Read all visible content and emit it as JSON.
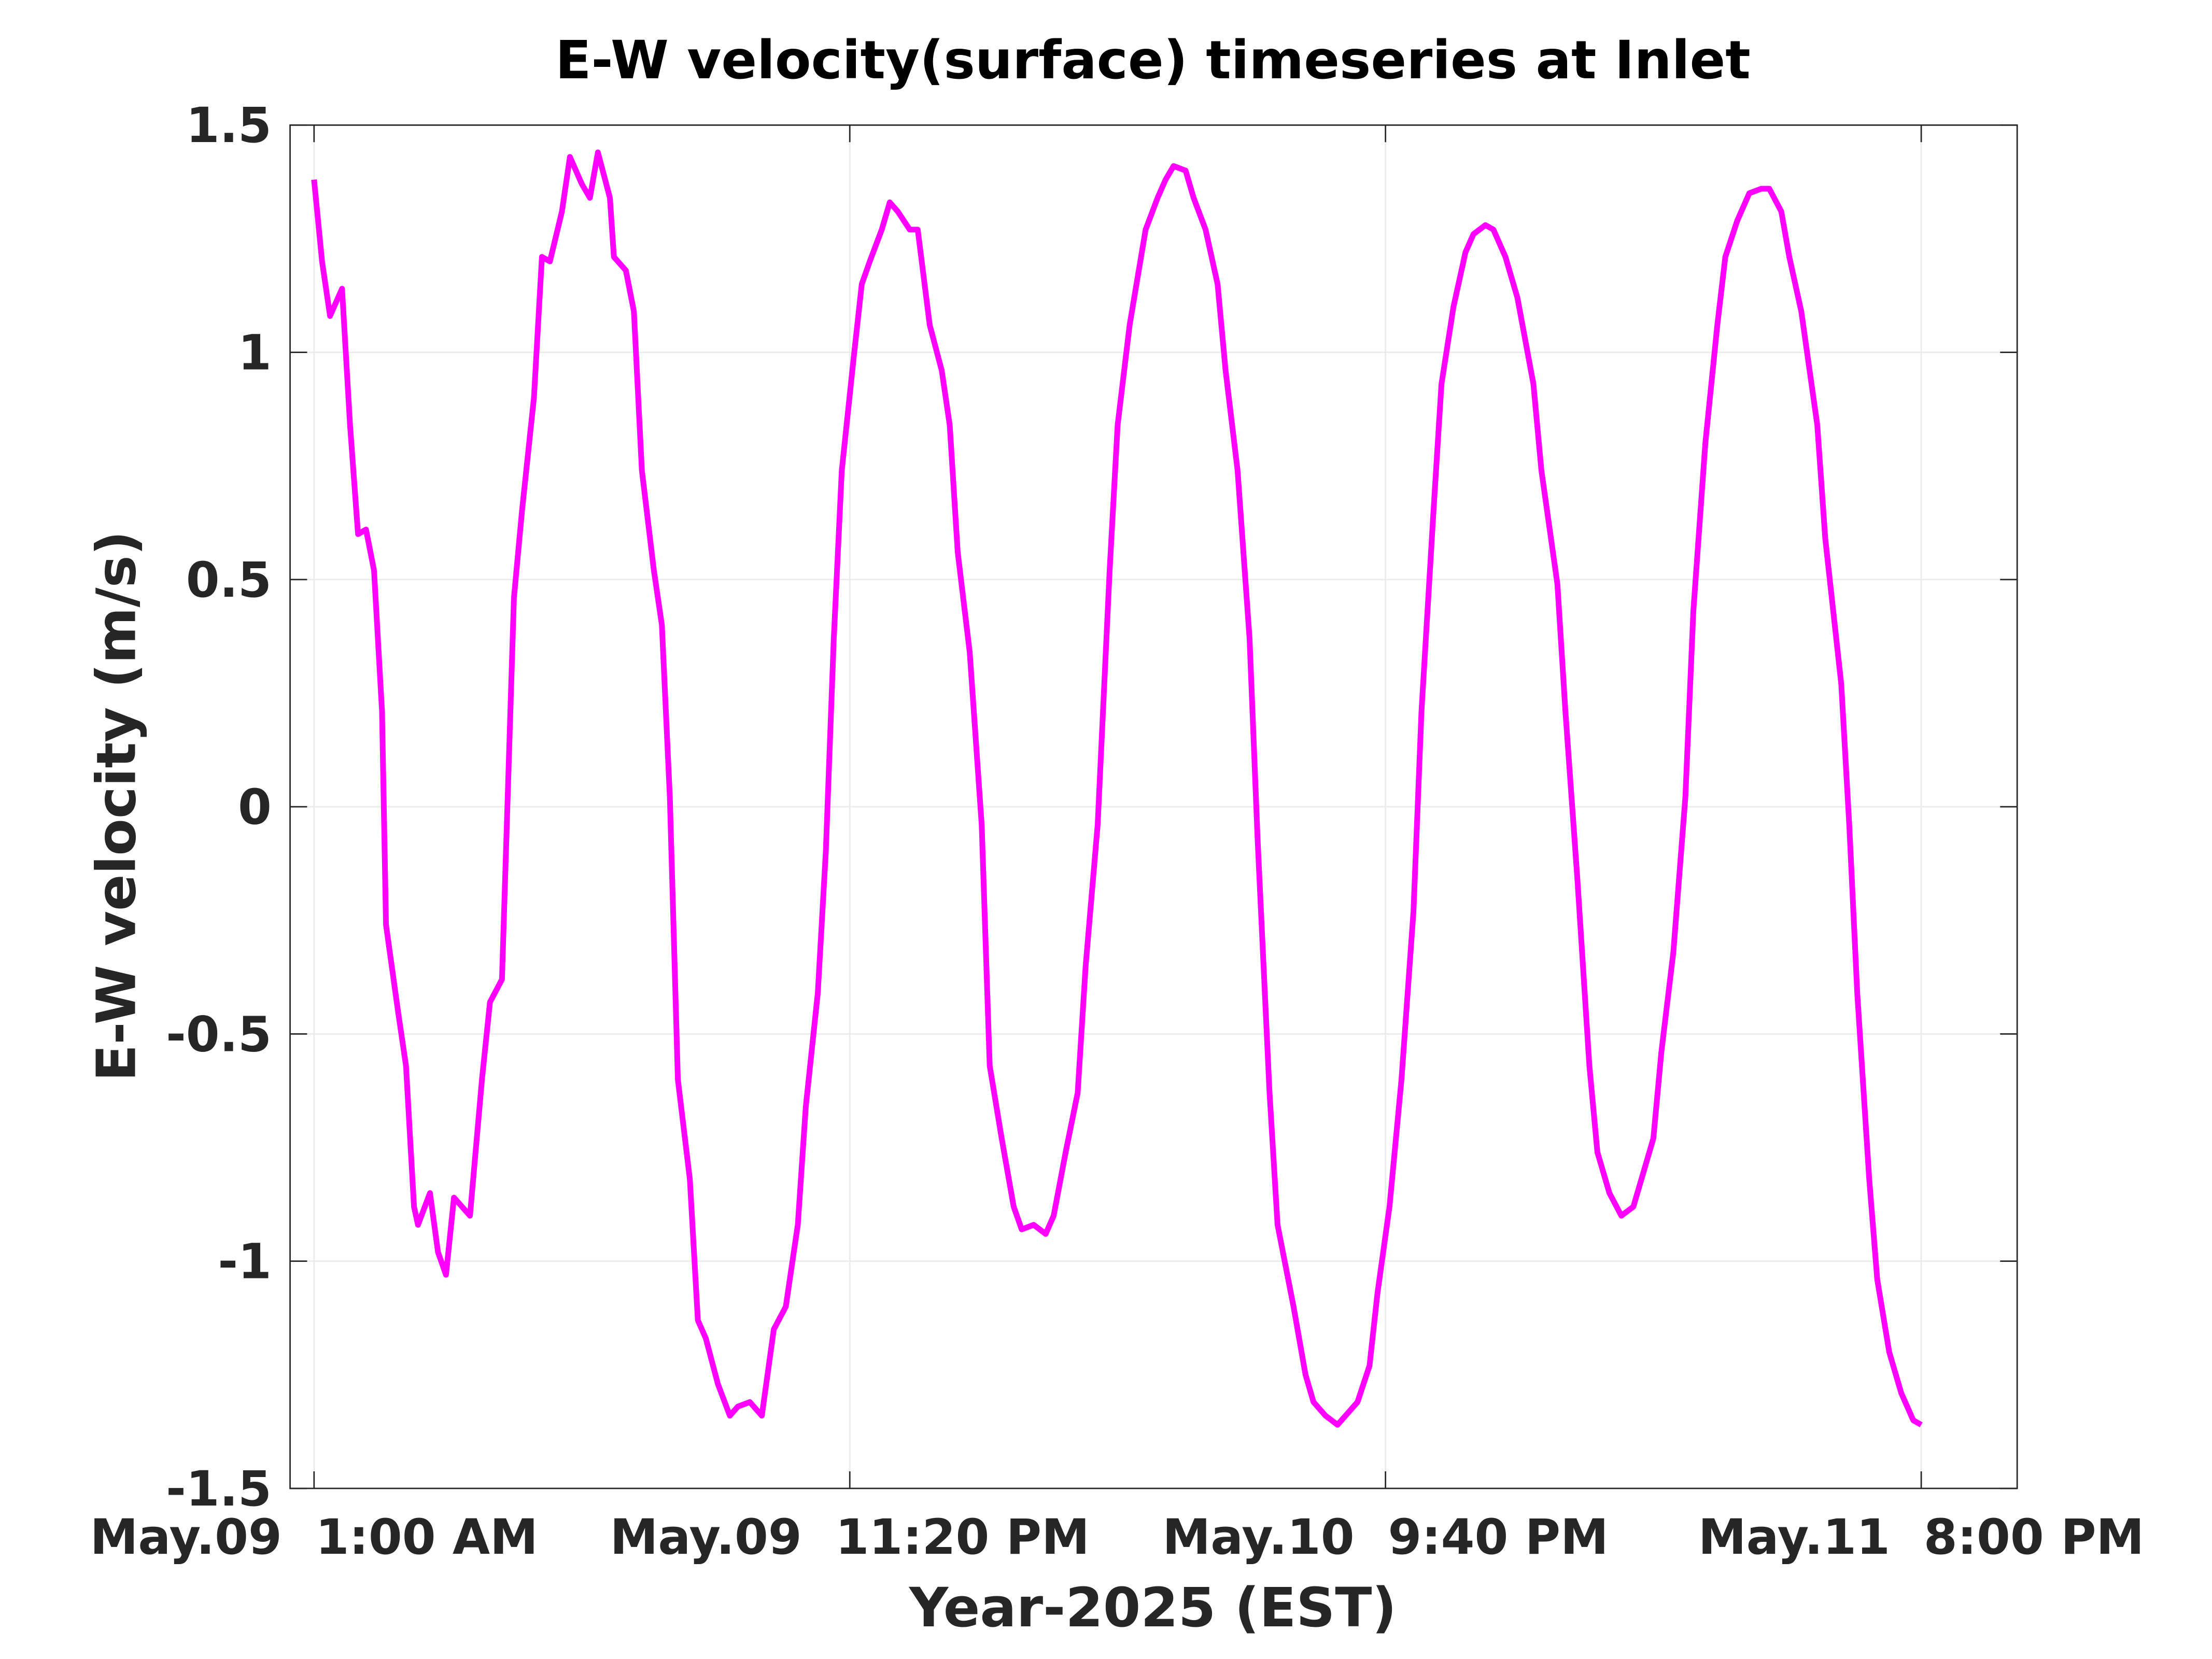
{
  "chart_data": {
    "type": "line",
    "title": "E-W velocity(surface) timeseries at Inlet",
    "xlabel": "Year-2025 (EST)",
    "ylabel": "E-W velocity (m/s)",
    "xlim": [
      "2025-05-09 00:00",
      "2025-05-12 00:00"
    ],
    "xticks": [
      {
        "value": "2025-05-09 01:00",
        "label": "May.09  1:00 AM"
      },
      {
        "value": "2025-05-09 23:20",
        "label": "May.09  11:20 PM"
      },
      {
        "value": "2025-05-10 21:40",
        "label": "May.10  9:40 PM"
      },
      {
        "value": "2025-05-11 20:00",
        "label": "May.11  8:00 PM"
      }
    ],
    "ylim": [
      -1.5,
      1.5
    ],
    "yticks": [
      -1.5,
      -1,
      -0.5,
      0,
      0.5,
      1,
      1.5
    ],
    "grid": true,
    "series": [
      {
        "color": "#ff00ff",
        "x": [
          "2025-05-09 01:00",
          "2025-05-09 01:20",
          "2025-05-09 01:40",
          "2025-05-09 02:10",
          "2025-05-09 02:30",
          "2025-05-09 02:50",
          "2025-05-09 03:10",
          "2025-05-09 03:30",
          "2025-05-09 03:50",
          "2025-05-09 04:00",
          "2025-05-09 04:30",
          "2025-05-09 04:50",
          "2025-05-09 05:10",
          "2025-05-09 05:20",
          "2025-05-09 05:50",
          "2025-05-09 06:10",
          "2025-05-09 06:30",
          "2025-05-09 06:50",
          "2025-05-09 07:30",
          "2025-05-09 08:00",
          "2025-05-09 08:20",
          "2025-05-09 08:50",
          "2025-05-09 09:00",
          "2025-05-09 09:20",
          "2025-05-09 09:40",
          "2025-05-09 10:10",
          "2025-05-09 10:30",
          "2025-05-09 10:50",
          "2025-05-09 11:20",
          "2025-05-09 11:40",
          "2025-05-09 12:10",
          "2025-05-09 12:30",
          "2025-05-09 12:50",
          "2025-05-09 13:20",
          "2025-05-09 13:30",
          "2025-05-09 14:00",
          "2025-05-09 14:20",
          "2025-05-09 14:40",
          "2025-05-09 15:10",
          "2025-05-09 15:30",
          "2025-05-09 15:50",
          "2025-05-09 16:10",
          "2025-05-09 16:40",
          "2025-05-09 17:00",
          "2025-05-09 17:20",
          "2025-05-09 17:50",
          "2025-05-09 18:20",
          "2025-05-09 18:40",
          "2025-05-09 19:10",
          "2025-05-09 19:40",
          "2025-05-09 20:10",
          "2025-05-09 20:40",
          "2025-05-09 21:10",
          "2025-05-09 21:30",
          "2025-05-09 22:00",
          "2025-05-09 22:20",
          "2025-05-09 22:40",
          "2025-05-09 23:00",
          "2025-05-09 23:30",
          "2025-05-09 23:50",
          "2025-05-10 00:10",
          "2025-05-10 00:40",
          "2025-05-10 01:00",
          "2025-05-10 01:20",
          "2025-05-10 01:50",
          "2025-05-10 02:10",
          "2025-05-10 02:40",
          "2025-05-10 03:10",
          "2025-05-10 03:30",
          "2025-05-10 03:50",
          "2025-05-10 04:20",
          "2025-05-10 04:50",
          "2025-05-10 05:10",
          "2025-05-10 05:40",
          "2025-05-10 06:10",
          "2025-05-10 06:30",
          "2025-05-10 07:00",
          "2025-05-10 07:30",
          "2025-05-10 07:50",
          "2025-05-10 08:20",
          "2025-05-10 08:50",
          "2025-05-10 09:10",
          "2025-05-10 09:40",
          "2025-05-10 10:10",
          "2025-05-10 10:30",
          "2025-05-10 11:00",
          "2025-05-10 11:40",
          "2025-05-10 12:10",
          "2025-05-10 12:30",
          "2025-05-10 12:50",
          "2025-05-10 13:20",
          "2025-05-10 13:40",
          "2025-05-10 14:10",
          "2025-05-10 14:40",
          "2025-05-10 15:00",
          "2025-05-10 15:30",
          "2025-05-10 16:00",
          "2025-05-10 16:20",
          "2025-05-10 16:50",
          "2025-05-10 17:10",
          "2025-05-10 17:50",
          "2025-05-10 18:20",
          "2025-05-10 18:40",
          "2025-05-10 19:10",
          "2025-05-10 19:40",
          "2025-05-10 20:00",
          "2025-05-10 20:30",
          "2025-05-10 21:00",
          "2025-05-10 21:20",
          "2025-05-10 21:50",
          "2025-05-10 22:20",
          "2025-05-10 22:50",
          "2025-05-10 23:10",
          "2025-05-10 23:40",
          "2025-05-11 00:00",
          "2025-05-11 00:30",
          "2025-05-11 01:00",
          "2025-05-11 01:20",
          "2025-05-11 01:50",
          "2025-05-11 02:10",
          "2025-05-11 02:40",
          "2025-05-11 03:10",
          "2025-05-11 03:50",
          "2025-05-11 04:10",
          "2025-05-11 04:50",
          "2025-05-11 05:10",
          "2025-05-11 05:40",
          "2025-05-11 06:10",
          "2025-05-11 06:30",
          "2025-05-11 07:00",
          "2025-05-11 07:30",
          "2025-05-11 08:00",
          "2025-05-11 08:20",
          "2025-05-11 08:50",
          "2025-05-11 09:10",
          "2025-05-11 09:40",
          "2025-05-11 10:10",
          "2025-05-11 10:30",
          "2025-05-11 11:00",
          "2025-05-11 11:30",
          "2025-05-11 11:50",
          "2025-05-11 12:20",
          "2025-05-11 12:50",
          "2025-05-11 13:20",
          "2025-05-11 13:40",
          "2025-05-11 14:10",
          "2025-05-11 14:30",
          "2025-05-11 15:00",
          "2025-05-11 15:40",
          "2025-05-11 16:00",
          "2025-05-11 16:40",
          "2025-05-11 17:00",
          "2025-05-11 17:20",
          "2025-05-11 17:50",
          "2025-05-11 18:10",
          "2025-05-11 18:40",
          "2025-05-11 19:10",
          "2025-05-11 19:40",
          "2025-05-11 20:00"
        ],
        "values": [
          1.38,
          1.2,
          1.08,
          1.14,
          0.84,
          0.6,
          0.61,
          0.52,
          0.21,
          -0.26,
          -0.45,
          -0.57,
          -0.88,
          -0.92,
          -0.85,
          -0.98,
          -1.03,
          -0.86,
          -0.9,
          -0.6,
          -0.43,
          -0.38,
          -0.1,
          0.46,
          0.65,
          0.9,
          1.21,
          1.2,
          1.31,
          1.43,
          1.37,
          1.34,
          1.44,
          1.34,
          1.21,
          1.18,
          1.09,
          0.74,
          0.52,
          0.4,
          0.02,
          -0.6,
          -0.82,
          -1.13,
          -1.17,
          -1.27,
          -1.34,
          -1.32,
          -1.31,
          -1.34,
          -1.15,
          -1.1,
          -0.92,
          -0.66,
          -0.41,
          -0.1,
          0.37,
          0.74,
          0.99,
          1.15,
          1.2,
          1.27,
          1.33,
          1.31,
          1.27,
          1.27,
          1.06,
          0.96,
          0.84,
          0.56,
          0.34,
          -0.04,
          -0.57,
          -0.73,
          -0.88,
          -0.93,
          -0.92,
          -0.94,
          -0.9,
          -0.76,
          -0.63,
          -0.35,
          -0.04,
          0.52,
          0.84,
          1.06,
          1.27,
          1.34,
          1.38,
          1.41,
          1.4,
          1.34,
          1.27,
          1.15,
          0.96,
          0.74,
          0.37,
          -0.07,
          -0.63,
          -0.92,
          -1.1,
          -1.25,
          -1.31,
          -1.34,
          -1.36,
          -1.34,
          -1.31,
          -1.23,
          -1.07,
          -0.88,
          -0.6,
          -0.23,
          0.21,
          0.65,
          0.93,
          1.1,
          1.22,
          1.26,
          1.28,
          1.27,
          1.21,
          1.12,
          0.93,
          0.74,
          0.49,
          0.21,
          -0.16,
          -0.57,
          -0.76,
          -0.85,
          -0.9,
          -0.88,
          -0.82,
          -0.73,
          -0.54,
          -0.32,
          0.02,
          0.43,
          0.8,
          1.06,
          1.21,
          1.29,
          1.35,
          1.36,
          1.36,
          1.31,
          1.21,
          1.09,
          0.84,
          0.59,
          0.27,
          -0.04,
          -0.41,
          -0.82,
          -1.04,
          -1.2,
          -1.29,
          -1.35,
          -1.36
        ]
      }
    ]
  }
}
